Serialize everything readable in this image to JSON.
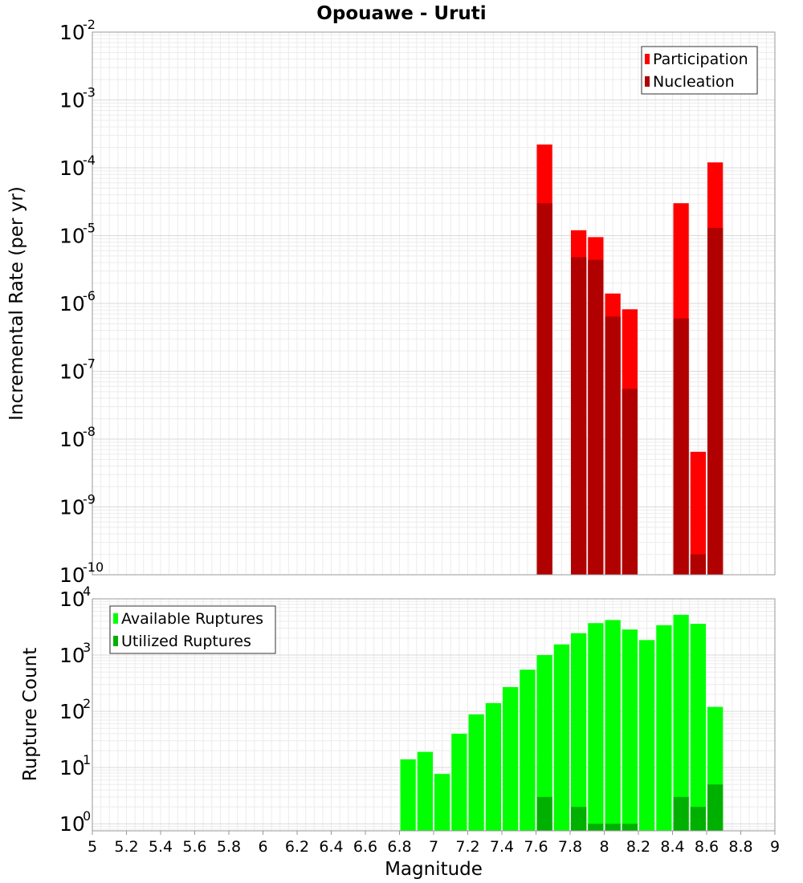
{
  "title": "Opouawe - Uruti",
  "xlabel": "Magnitude",
  "x_ticks": [
    "5",
    "5.2",
    "5.4",
    "5.6",
    "5.8",
    "6",
    "6.2",
    "6.4",
    "6.6",
    "6.8",
    "7",
    "7.2",
    "7.4",
    "7.6",
    "7.8",
    "8",
    "8.2",
    "8.4",
    "8.6",
    "8.8",
    "9"
  ],
  "colors": {
    "participation": "#ff0000",
    "nucleation": "#b00000",
    "available": "#00ff00",
    "utilized": "#00b000"
  },
  "chart_data": [
    {
      "type": "bar",
      "ylabel": "Incremental Rate (per yr)",
      "yscale": "log",
      "ylim": [
        1e-10,
        0.01
      ],
      "xlim": [
        5,
        9
      ],
      "bar_width": 0.1,
      "legend_position": "top-right",
      "y_tick_exponents": [
        "-10",
        "-9",
        "-8",
        "-7",
        "-6",
        "-5",
        "-4",
        "-3",
        "-2"
      ],
      "series": [
        {
          "name": "Participation",
          "x": [
            7.65,
            7.85,
            7.95,
            8.05,
            8.15,
            8.45,
            8.55,
            8.65
          ],
          "values": [
            0.00022,
            1.2e-05,
            9.5e-06,
            1.4e-06,
            8.2e-07,
            3e-05,
            6.5e-09,
            0.00012
          ]
        },
        {
          "name": "Nucleation",
          "x": [
            7.65,
            7.85,
            7.95,
            8.05,
            8.15,
            8.45,
            8.55,
            8.65
          ],
          "values": [
            3e-05,
            4.8e-06,
            4.4e-06,
            6.4e-07,
            5.5e-08,
            6e-07,
            2e-10,
            1.3e-05
          ]
        }
      ]
    },
    {
      "type": "bar",
      "ylabel": "Rupture Count",
      "yscale": "log",
      "ylim": [
        0.75,
        10000
      ],
      "xlim": [
        5,
        9
      ],
      "bar_width": 0.1,
      "legend_position": "top-left",
      "y_tick_exponents": [
        "0",
        "1",
        "2",
        "3",
        "4"
      ],
      "series": [
        {
          "name": "Available Ruptures",
          "x": [
            6.85,
            6.95,
            7.05,
            7.15,
            7.25,
            7.35,
            7.45,
            7.55,
            7.65,
            7.75,
            7.85,
            7.95,
            8.05,
            8.15,
            8.25,
            8.35,
            8.45,
            8.55,
            8.65
          ],
          "values": [
            14,
            19,
            7.7,
            40,
            88,
            140,
            270,
            550,
            1000,
            1550,
            2450,
            3700,
            4200,
            2850,
            1850,
            3400,
            5200,
            3600,
            120
          ]
        },
        {
          "name": "Utilized Ruptures",
          "x": [
            7.65,
            7.85,
            7.95,
            8.05,
            8.15,
            8.45,
            8.55,
            8.65
          ],
          "values": [
            3,
            2,
            1,
            1,
            1,
            3,
            2,
            5
          ]
        }
      ]
    }
  ]
}
